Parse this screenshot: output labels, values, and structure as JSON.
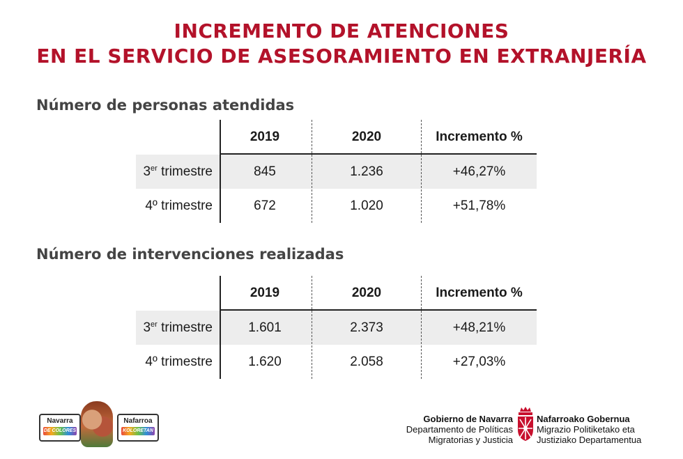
{
  "title": {
    "line1": "INCREMENTO DE ATENCIONES",
    "line2": "EN EL SERVICIO DE ASESORAMIENTO EN EXTRANJERÍA"
  },
  "sections": [
    {
      "title": "Número de personas atendidas",
      "headers": [
        "2019",
        "2020",
        "Incremento %"
      ],
      "rows": [
        {
          "label": "3",
          "label_sup": "er",
          "label_rest": " trimestre",
          "v2019": "845",
          "v2020": "1.236",
          "inc": "+46,27%"
        },
        {
          "label": "4º trimestre",
          "v2019": "672",
          "v2020": "1.020",
          "inc": "+51,78%"
        }
      ]
    },
    {
      "title": "Número de intervenciones realizadas",
      "headers": [
        "2019",
        "2020",
        "Incremento %"
      ],
      "rows": [
        {
          "label": "3",
          "label_sup": "er",
          "label_rest": " trimestre",
          "v2019": "1.601",
          "v2020": "2.373",
          "inc": "+48,21%"
        },
        {
          "label": "4º trimestre",
          "v2019": "1.620",
          "v2020": "2.058",
          "inc": "+27,03%"
        }
      ]
    }
  ],
  "footer": {
    "badge_left": {
      "name": "Navarra",
      "ribbon": "DE COLORES"
    },
    "badge_right": {
      "name": "Nafarroa",
      "ribbon": "KOLORETAN"
    },
    "gov_es": {
      "name": "Gobierno de Navarra",
      "line1": "Departamento de Políticas",
      "line2": "Migratorias y Justicia"
    },
    "gov_eu": {
      "name": "Nafarroako Gobernua",
      "line1": "Migrazio Politiketako eta",
      "line2": "Justiziako Departamentua"
    },
    "colors": {
      "title": "#b3122a",
      "shield": "#c8102e"
    }
  }
}
